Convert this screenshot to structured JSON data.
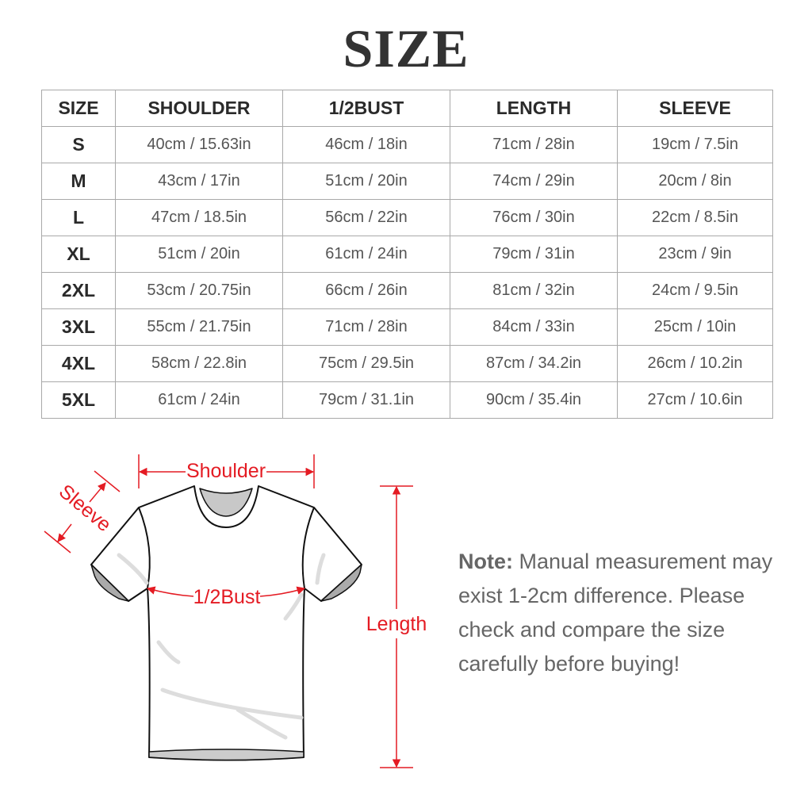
{
  "title": "SIZE",
  "table": {
    "headers": [
      "SIZE",
      "SHOULDER",
      "1/2BUST",
      "LENGTH",
      "SLEEVE"
    ],
    "rows": [
      [
        "S",
        "40cm / 15.63in",
        "46cm / 18in",
        "71cm / 28in",
        "19cm / 7.5in"
      ],
      [
        "M",
        "43cm / 17in",
        "51cm / 20in",
        "74cm / 29in",
        "20cm / 8in"
      ],
      [
        "L",
        "47cm / 18.5in",
        "56cm / 22in",
        "76cm / 30in",
        "22cm / 8.5in"
      ],
      [
        "XL",
        "51cm / 20in",
        "61cm / 24in",
        "79cm / 31in",
        "23cm / 9in"
      ],
      [
        "2XL",
        "53cm / 20.75in",
        "66cm / 26in",
        "81cm / 32in",
        "24cm / 9.5in"
      ],
      [
        "3XL",
        "55cm / 21.75in",
        "71cm / 28in",
        "84cm / 33in",
        "25cm / 10in"
      ],
      [
        "4XL",
        "58cm / 22.8in",
        "75cm / 29.5in",
        "87cm / 34.2in",
        "26cm / 10.2in"
      ],
      [
        "5XL",
        "61cm / 24in",
        "79cm / 31.1in",
        "90cm / 35.4in",
        "27cm / 10.6in"
      ]
    ]
  },
  "diagram": {
    "shoulder": "Shoulder",
    "sleeve": "Sleeve",
    "bust": "1/2Bust",
    "length": "Length"
  },
  "note": {
    "label": "Note:",
    "text": "Manual measurement may exist 1-2cm difference. Please check and compare the size carefully before buying!"
  },
  "colors": {
    "annotation": "#e41b23",
    "text": "#333333",
    "grid": "#a9a9a9"
  }
}
